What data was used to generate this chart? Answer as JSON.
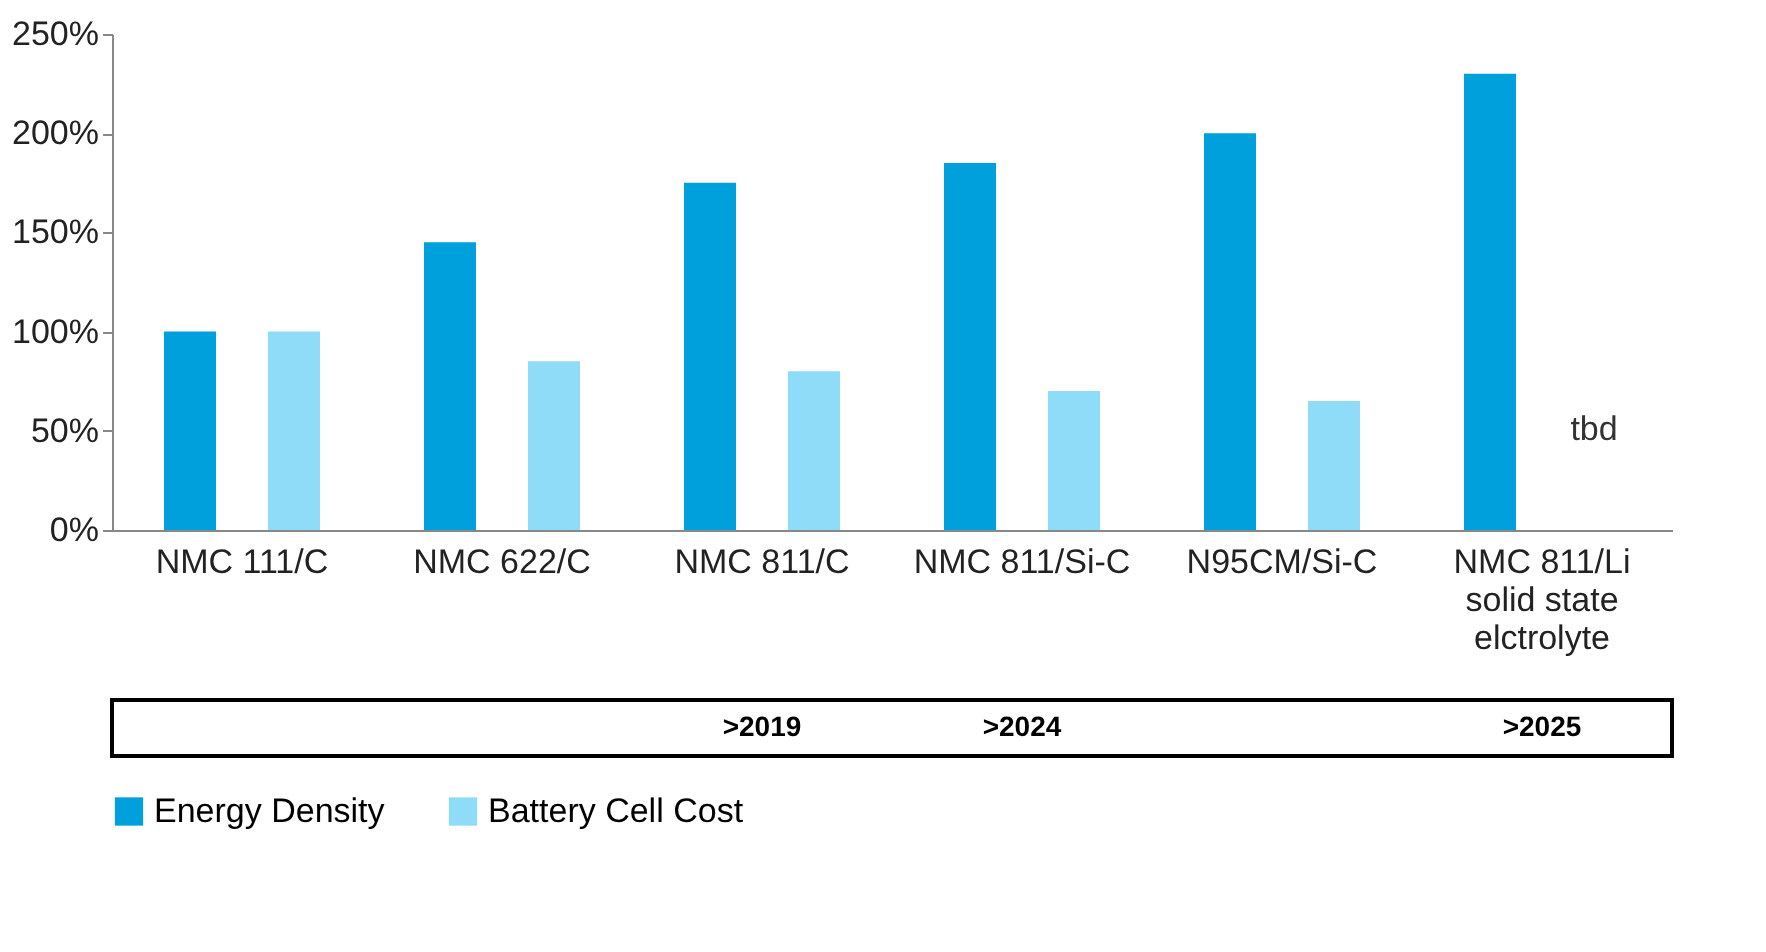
{
  "chart_data": {
    "type": "bar",
    "categories": [
      "NMC 111/C",
      "NMC 622/C",
      "NMC 811/C",
      "NMC 811/Si-C",
      "N95CM/Si-C",
      "NMC 811/Li solid state elctrolyte"
    ],
    "series": [
      {
        "name": "Energy Density",
        "color": "#00a0dc",
        "values": [
          100,
          145,
          175,
          185,
          200,
          230
        ]
      },
      {
        "name": "Battery Cell Cost",
        "color": "#8fdcf8",
        "values": [
          100,
          85,
          80,
          70,
          65,
          null
        ]
      }
    ],
    "ylim": [
      0,
      250
    ],
    "yticks": [
      {
        "value": 0,
        "label": "0%"
      },
      {
        "value": 50,
        "label": "50%"
      },
      {
        "value": 100,
        "label": "100%"
      },
      {
        "value": 150,
        "label": "150%"
      },
      {
        "value": 200,
        "label": "200%"
      },
      {
        "value": 250,
        "label": "250%"
      }
    ],
    "annotations": [
      "tbd",
      ">2019",
      ">2024",
      ">2025"
    ],
    "grid": false,
    "legend": "bottom"
  }
}
